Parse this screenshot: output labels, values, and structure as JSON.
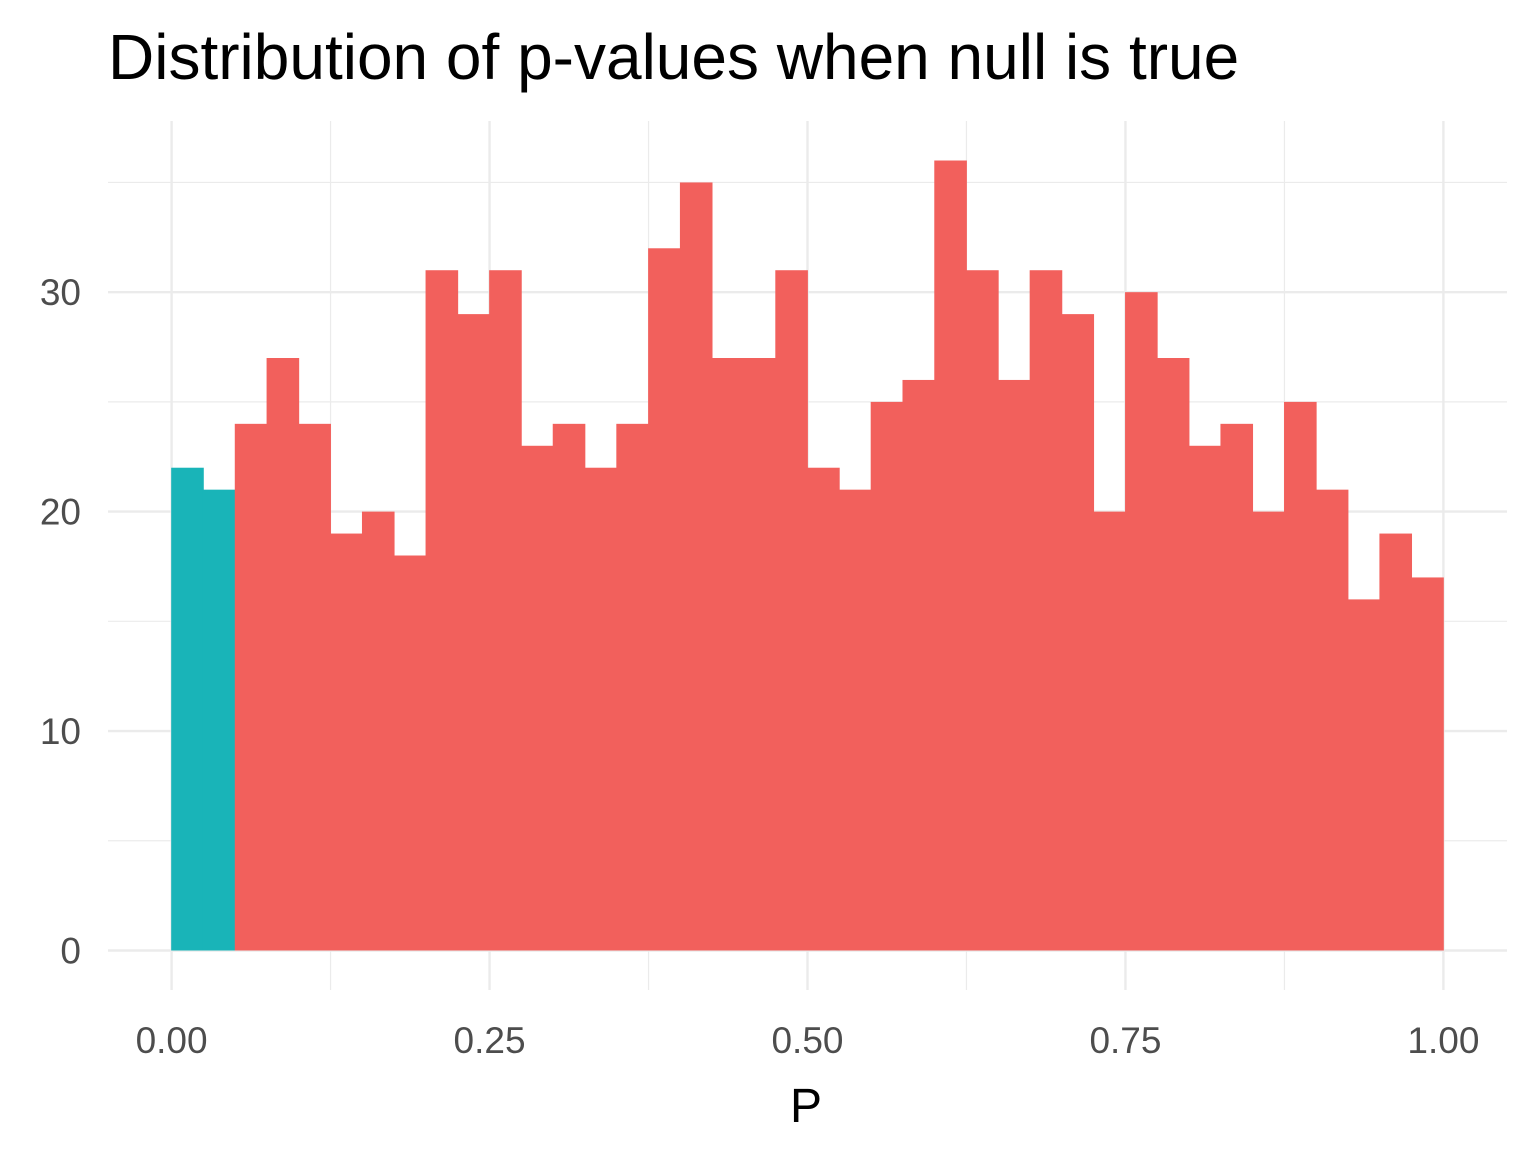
{
  "chart_data": {
    "type": "bar",
    "title": "Distribution of p-values when null is true",
    "xlabel": "P",
    "ylabel": "",
    "xlim": [
      -0.05,
      1.05
    ],
    "ylim": [
      -1.8,
      37.8
    ],
    "x_ticks": [
      0.0,
      0.25,
      0.5,
      0.75,
      1.0
    ],
    "x_tick_labels": [
      "0.00",
      "0.25",
      "0.50",
      "0.75",
      "1.00"
    ],
    "y_ticks": [
      0,
      10,
      20,
      30
    ],
    "y_tick_labels": [
      "0",
      "10",
      "20",
      "30"
    ],
    "grid": true,
    "legend": "none",
    "bin_width": 0.025,
    "bin_starts": [
      0.0,
      0.025,
      0.05,
      0.075,
      0.1,
      0.125,
      0.15,
      0.175,
      0.2,
      0.225,
      0.25,
      0.275,
      0.3,
      0.325,
      0.35,
      0.375,
      0.4,
      0.425,
      0.45,
      0.475,
      0.5,
      0.525,
      0.55,
      0.575,
      0.6,
      0.625,
      0.65,
      0.675,
      0.7,
      0.725,
      0.75,
      0.775,
      0.8,
      0.825,
      0.85,
      0.875,
      0.9,
      0.925,
      0.95,
      0.975
    ],
    "series": [
      {
        "color": "#19b4b8",
        "values": [
          22,
          21,
          0,
          0,
          0,
          0,
          0,
          0,
          0,
          0,
          0,
          0,
          0,
          0,
          0,
          0,
          0,
          0,
          0,
          0,
          0,
          0,
          0,
          0,
          0,
          0,
          0,
          0,
          0,
          0,
          0,
          0,
          0,
          0,
          0,
          0,
          0,
          0,
          0,
          0
        ]
      },
      {
        "color": "#f2605c",
        "values": [
          0,
          0,
          24,
          27,
          24,
          19,
          20,
          18,
          31,
          29,
          31,
          23,
          24,
          22,
          24,
          32,
          35,
          27,
          27,
          31,
          22,
          21,
          25,
          26,
          36,
          31,
          26,
          31,
          29,
          20,
          30,
          27,
          23,
          24,
          20,
          25,
          21,
          16,
          19,
          17
        ]
      }
    ]
  }
}
